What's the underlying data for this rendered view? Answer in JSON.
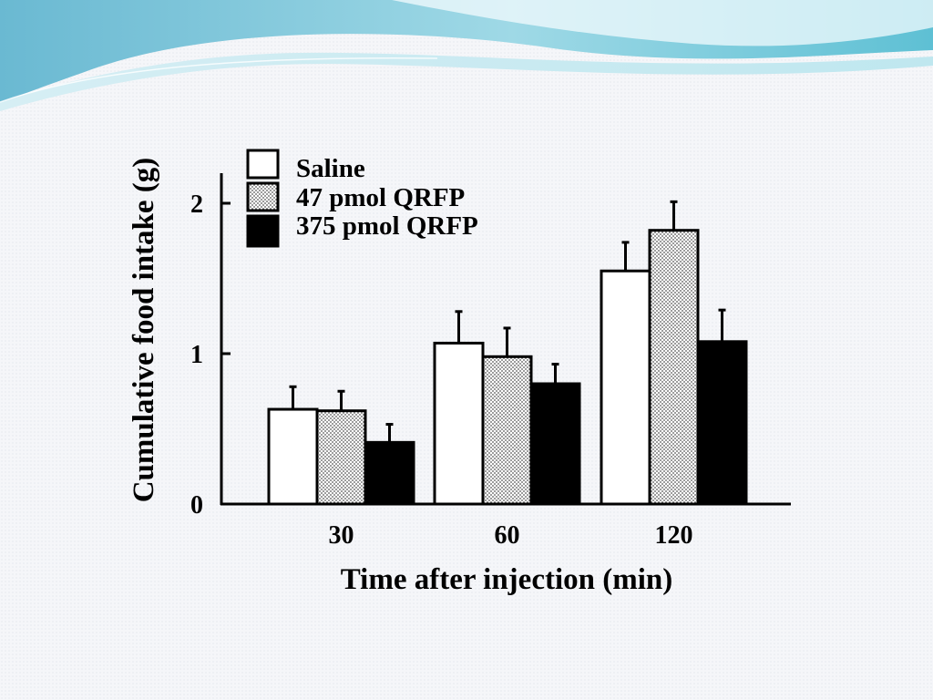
{
  "chart_data": {
    "type": "bar",
    "categories": [
      "30",
      "60",
      "120"
    ],
    "series": [
      {
        "name": "Saline",
        "values": [
          0.63,
          1.07,
          1.55
        ],
        "errors": [
          0.15,
          0.21,
          0.19
        ],
        "fill": "white"
      },
      {
        "name": "47 pmol QRFP",
        "values": [
          0.62,
          0.98,
          1.82
        ],
        "errors": [
          0.13,
          0.19,
          0.19
        ],
        "fill": "stipple"
      },
      {
        "name": "375 pmol QRFP",
        "values": [
          0.41,
          0.8,
          1.08
        ],
        "errors": [
          0.12,
          0.13,
          0.21
        ],
        "fill": "black"
      }
    ],
    "yticks": [
      "0",
      "1",
      "2"
    ],
    "ylim": [
      0,
      2.2
    ],
    "xlabel": "Time after injection (min)",
    "ylabel": "Cumulative food intake (g)",
    "legend_position": "top-left",
    "grid": false
  },
  "colors": {
    "background": "#f5f6f9",
    "wave_dark": "#5fb8cc",
    "wave_light": "#bfe6ee",
    "bar_outline": "#000000"
  }
}
